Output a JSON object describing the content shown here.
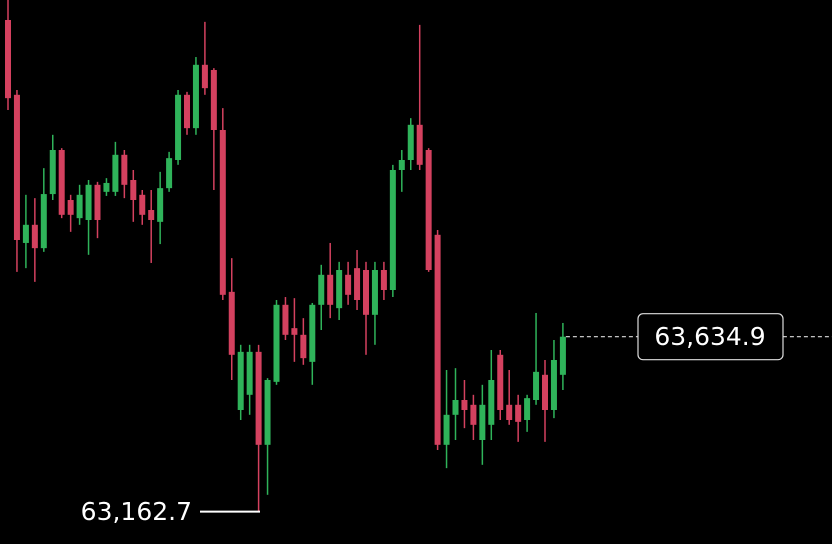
{
  "chart_data": {
    "type": "candlestick",
    "open": [
      64490,
      64288,
      63888,
      63937,
      63874,
      64020,
      64139,
      64004,
      63955,
      63950,
      64045,
      64026,
      64026,
      64126,
      64058,
      64018,
      63977,
      63945,
      64036,
      64112,
      64288,
      64198,
      64369,
      64355,
      64193,
      63756,
      63437,
      63478,
      63594,
      63343,
      63513,
      63721,
      63658,
      63640,
      63567,
      63721,
      63802,
      63712,
      63802,
      63820,
      63815,
      63694,
      63815,
      63761,
      64085,
      64112,
      64207,
      64139,
      63910,
      63343,
      63424,
      63464,
      63451,
      63356,
      63397,
      63586,
      63451,
      63451,
      63410,
      63464,
      63532,
      63437,
      63532
    ],
    "high": [
      64544,
      64301,
      64018,
      64009,
      64090,
      64180,
      64144,
      64018,
      64045,
      64058,
      64053,
      64063,
      64161,
      64139,
      64085,
      64031,
      64031,
      64080,
      64134,
      64301,
      64296,
      64390,
      64485,
      64360,
      64252,
      63847,
      63613,
      63613,
      63613,
      63523,
      63734,
      63742,
      63739,
      63685,
      63726,
      63829,
      63888,
      63837,
      63837,
      63869,
      63837,
      63837,
      63837,
      64099,
      64139,
      64225,
      64477,
      64144,
      63923,
      63545,
      63550,
      63518,
      63478,
      63505,
      63599,
      63599,
      63545,
      63478,
      63478,
      63699,
      63572,
      63626,
      63672
    ],
    "low": [
      64247,
      63810,
      63820,
      63783,
      63864,
      64004,
      63955,
      63918,
      63937,
      63856,
      63901,
      64015,
      64015,
      64009,
      63945,
      63937,
      63834,
      63885,
      64026,
      64099,
      64180,
      64180,
      64288,
      64031,
      63734,
      63518,
      63410,
      63424,
      63162.7,
      63208,
      63505,
      63626,
      63567,
      63559,
      63505,
      63653,
      63685,
      63680,
      63721,
      63707,
      63586,
      63613,
      63734,
      63742,
      64026,
      64085,
      64085,
      63810,
      63329,
      63280,
      63356,
      63388,
      63356,
      63289,
      63356,
      63410,
      63397,
      63351,
      63378,
      63451,
      63351,
      63415,
      63491
    ],
    "close": [
      64279,
      63896,
      63937,
      63874,
      64020,
      64139,
      63964,
      63964,
      64018,
      64045,
      63950,
      64050,
      64126,
      64045,
      64004,
      63964,
      63950,
      64036,
      64117,
      64288,
      64198,
      64369,
      64306,
      64193,
      63748,
      63586,
      63594,
      63594,
      63343,
      63518,
      63721,
      63640,
      63640,
      63577,
      63721,
      63802,
      63721,
      63815,
      63748,
      63734,
      63694,
      63815,
      63761,
      64085,
      64112,
      64207,
      64099,
      63815,
      63343,
      63424,
      63464,
      63437,
      63397,
      63451,
      63518,
      63437,
      63410,
      63405,
      63469,
      63540,
      63437,
      63572,
      63634.9
    ],
    "up_color": "#2fb35a",
    "down_color": "#d4415f",
    "ylim": [
      63075.2,
      64544
    ],
    "last_price": {
      "value": 63634.9,
      "label": "63,634.9"
    },
    "low_marker": {
      "value": 63162.7,
      "label": "63,162.7"
    }
  }
}
